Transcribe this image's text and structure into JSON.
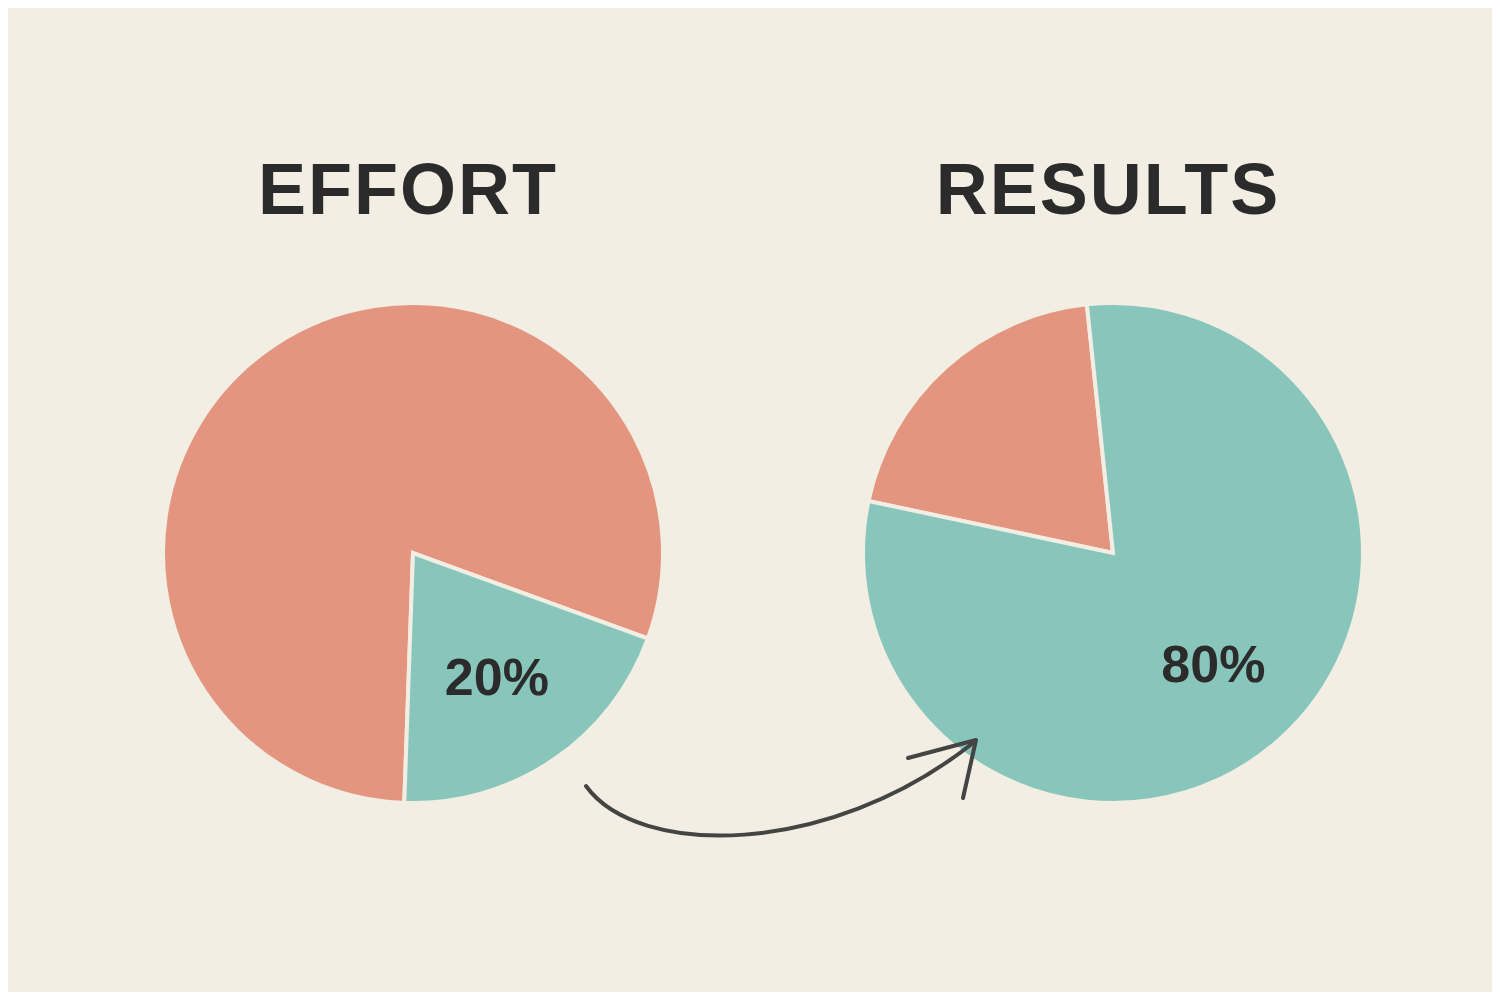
{
  "chart_data": [
    {
      "type": "pie",
      "title": "EFFORT",
      "categories": [
        null,
        null
      ],
      "values": [
        80,
        20
      ],
      "colors": [
        "#e4957f",
        "#88c6bc"
      ],
      "value_labels": [
        null,
        "20%"
      ]
    },
    {
      "type": "pie",
      "title": "RESULTS",
      "categories": [
        null,
        null
      ],
      "values": [
        20,
        80
      ],
      "colors": [
        "#e4957f",
        "#88c6bc"
      ],
      "value_labels": [
        null,
        "80%"
      ]
    }
  ]
}
